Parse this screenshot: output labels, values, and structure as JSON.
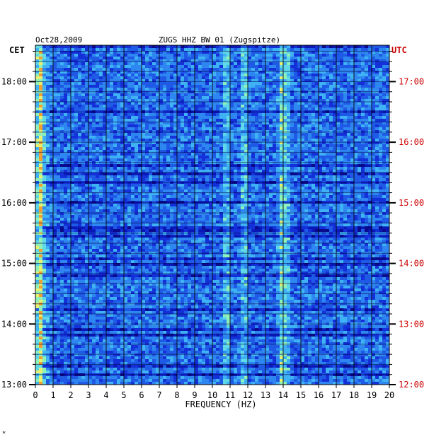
{
  "header": {
    "date": "Oct28,2009",
    "station": "ZUGS HHZ BW 01 (Zugspitze)"
  },
  "axes": {
    "left_label": "CET",
    "right_label": "UTC",
    "xlabel": "FREQUENCY (HZ)"
  },
  "colors": {
    "background": "#ffffff",
    "plot_base": "#0b18b8",
    "grid": "#000000",
    "text": "#000000",
    "utc_text": "#cc0000"
  },
  "corner_mark": "*",
  "chart_data": {
    "type": "heatmap",
    "title": "ZUGS HHZ BW 01 (Zugspitze)",
    "date": "Oct28,2009",
    "xlabel": "FREQUENCY (HZ)",
    "xlim": [
      0,
      20
    ],
    "x_ticks": [
      "0",
      "1",
      "2",
      "3",
      "4",
      "5",
      "6",
      "7",
      "8",
      "9",
      "10",
      "11",
      "12",
      "13",
      "14",
      "15",
      "16",
      "17",
      "18",
      "19",
      "20"
    ],
    "y_range_cet_hours": [
      13,
      18.6
    ],
    "y_ticks_cet": [
      "18:00",
      "17:00",
      "16:00",
      "15:00",
      "14:00",
      "13:00"
    ],
    "y_ticks_utc": [
      "17:00",
      "16:00",
      "15:00",
      "14:00",
      "13:00",
      "12:00"
    ],
    "spectral_lines_hz": [
      0.3,
      10.8,
      11.8,
      13.9,
      14.2
    ],
    "grid": true
  }
}
